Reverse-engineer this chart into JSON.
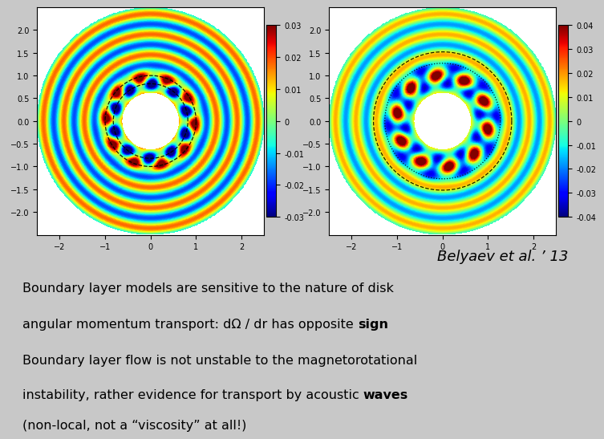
{
  "background_color": "#c8c8c8",
  "title_text": "Belyaev et al. ’ 13",
  "line1a": "Boundary layer models are sensitive to the nature of disk",
  "line1b": "angular momentum transport: dΩ / dr has opposite ",
  "line1b_bold": "sign",
  "line2a": "Boundary layer flow is not unstable to the magnetorotational",
  "line2b": "instability, rather evidence for transport by acoustic ",
  "line2b_bold": "waves",
  "line2c": "(non-local, not a “viscosity” at all!)",
  "xlim": [
    -2.5,
    2.5
  ],
  "ylim": [
    -2.5,
    2.5
  ],
  "cmap1_vmin": -0.03,
  "cmap1_vmax": 0.03,
  "cmap2_vmin": -0.04,
  "cmap2_vmax": 0.04,
  "inner_r": 0.62,
  "outer_r": 2.5,
  "n_theta": 600,
  "n_r": 400
}
